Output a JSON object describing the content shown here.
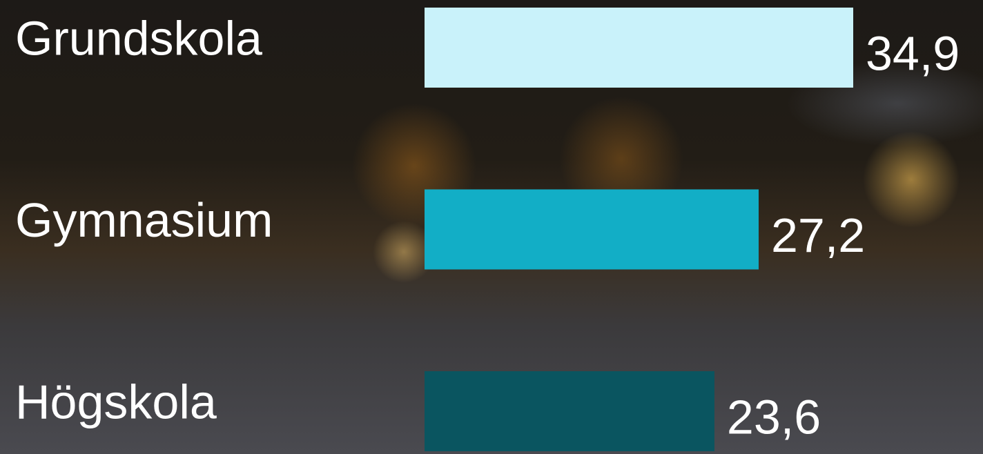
{
  "chart_data": {
    "type": "hbar",
    "categories": [
      "Grundskola",
      "Gymnasium",
      "Högskola"
    ],
    "values": [
      34.9,
      27.2,
      23.6
    ],
    "value_labels": [
      "34,9",
      "27,2",
      "23,6"
    ],
    "colors": [
      "#c9f2fa",
      "#12aec6",
      "#0a5560"
    ]
  }
}
